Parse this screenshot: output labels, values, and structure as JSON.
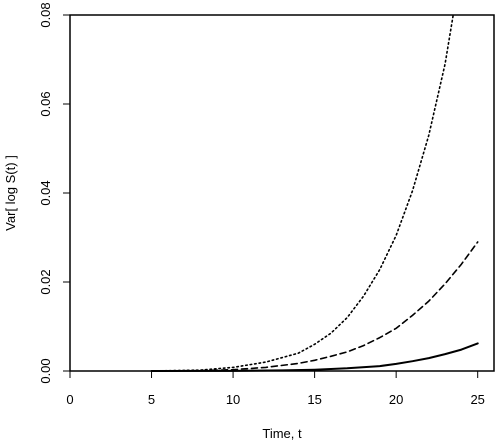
{
  "chart_data": {
    "type": "line",
    "xlabel": "Time, t",
    "ylabel": "Var[ log S(t) ]",
    "xlim": [
      0,
      26
    ],
    "ylim": [
      0,
      0.08
    ],
    "x_ticks": [
      0,
      5,
      10,
      15,
      20,
      25
    ],
    "x_tick_labels": [
      "0",
      "5",
      "10",
      "15",
      "20",
      "25"
    ],
    "y_ticks": [
      0,
      0.02,
      0.04,
      0.06,
      0.08
    ],
    "y_tick_labels": [
      "0.00",
      "0.02",
      "0.04",
      "0.06",
      "0.08"
    ],
    "grid": false,
    "legend": "none",
    "series": [
      {
        "style": "solid",
        "color": "#000000",
        "x": [
          5,
          10,
          13,
          15,
          17,
          19,
          20,
          21,
          22,
          23,
          24,
          25
        ],
        "y": [
          0.0,
          3e-05,
          0.00013,
          0.0003,
          0.0006,
          0.0011,
          0.0016,
          0.0022,
          0.0029,
          0.0038,
          0.0048,
          0.0062
        ]
      },
      {
        "style": "dashed",
        "color": "#000000",
        "x": [
          5,
          8,
          10,
          12,
          14,
          15,
          16,
          17,
          18,
          19,
          20,
          21,
          22,
          23,
          24,
          25
        ],
        "y": [
          0.0,
          0.0001,
          0.0003,
          0.0008,
          0.0017,
          0.0024,
          0.0033,
          0.0043,
          0.0057,
          0.0075,
          0.0096,
          0.0125,
          0.0157,
          0.0196,
          0.024,
          0.029
        ]
      },
      {
        "style": "dotted",
        "color": "#000000",
        "x": [
          5,
          8,
          10,
          12,
          14,
          15,
          16,
          17,
          18,
          19,
          20,
          21,
          22,
          23,
          23.5
        ],
        "y": [
          0.0,
          0.0002,
          0.0008,
          0.002,
          0.004,
          0.006,
          0.0085,
          0.012,
          0.0168,
          0.0228,
          0.0305,
          0.0405,
          0.053,
          0.069,
          0.08
        ]
      }
    ]
  }
}
